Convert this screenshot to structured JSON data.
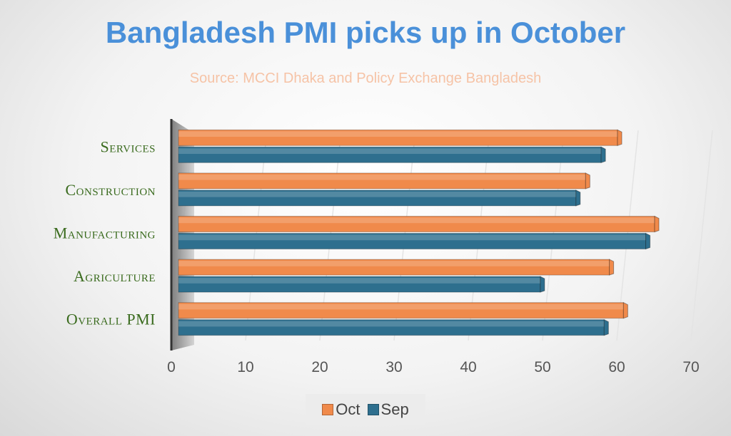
{
  "chart_data": {
    "type": "bar",
    "orientation": "horizontal",
    "title": "Bangladesh PMI picks up in October",
    "subtitle": "Source: MCCI Dhaka and Policy Exchange Bangladesh",
    "categories": [
      "Services",
      "Construction",
      "Manufacturing",
      "Agriculture",
      "Overall PMI"
    ],
    "series": [
      {
        "name": "Oct",
        "color": "#f08a4b",
        "values": [
          60.1,
          55.8,
          65.1,
          59.0,
          60.9
        ]
      },
      {
        "name": "Sep",
        "color": "#2e6f8e",
        "values": [
          57.9,
          54.5,
          63.9,
          49.7,
          58.3
        ]
      }
    ],
    "xlim": [
      0,
      70
    ],
    "xticks": [
      "0",
      "10",
      "20",
      "30",
      "40",
      "50",
      "60",
      "70"
    ],
    "grid": true,
    "legend_position": "bottom"
  }
}
